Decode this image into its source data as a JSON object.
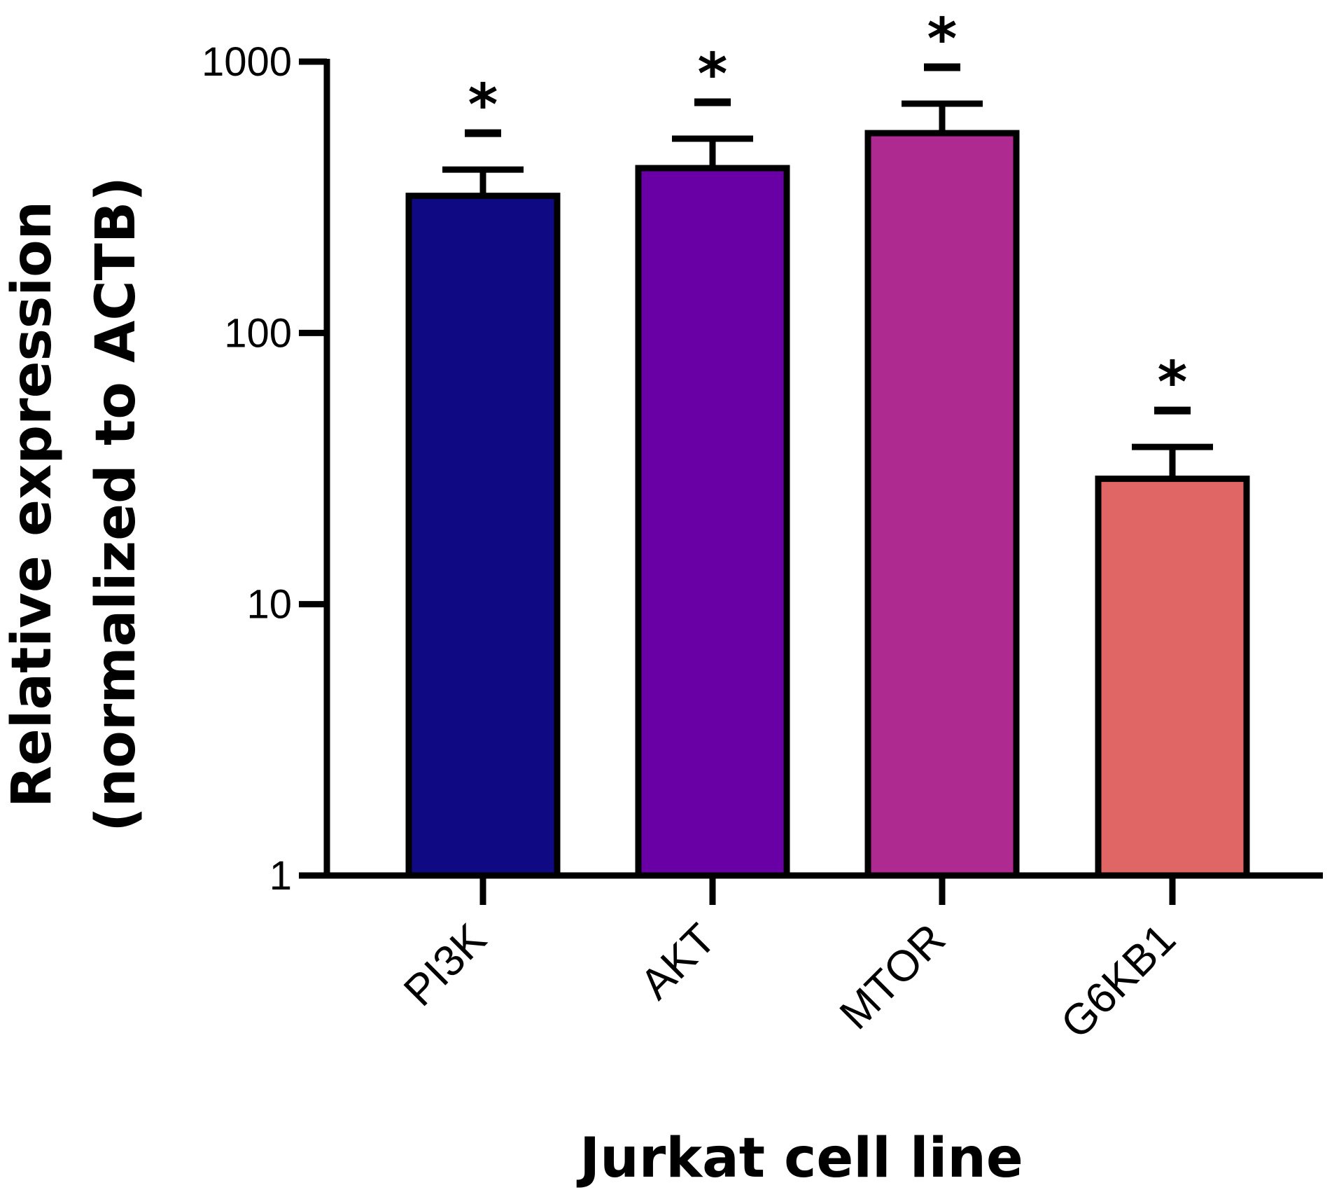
{
  "chart_data": {
    "type": "bar",
    "yscale": "log",
    "title": "",
    "xlabel": "Jurkat cell line",
    "ylabel": [
      "Relative expression",
      "(normalized to ACTB)"
    ],
    "ylim": [
      1,
      1000
    ],
    "yticks": [
      1,
      10,
      100,
      1000
    ],
    "ytick_labels": [
      "1",
      "10",
      "100",
      "1000"
    ],
    "categories": [
      "PI3K",
      "AKT",
      "MTOR",
      "G6KB1"
    ],
    "values": [
      320,
      405,
      545,
      29
    ],
    "errors_upper": [
      400,
      520,
      700,
      38
    ],
    "significance": [
      "*",
      "*",
      "*",
      "*"
    ],
    "colors": [
      "#0f0a84",
      "#6800a6",
      "#ae2990",
      "#e06565"
    ],
    "outline": "#000000"
  }
}
